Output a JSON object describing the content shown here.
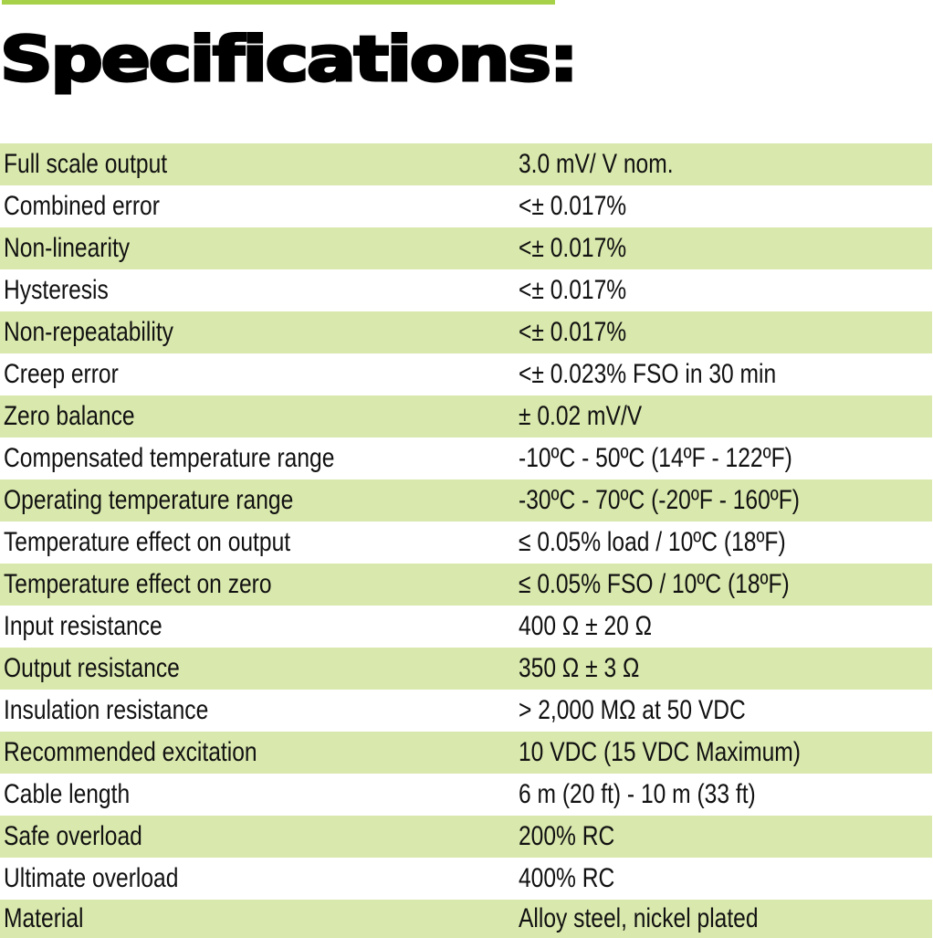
{
  "header": {
    "accent_color": "#a8d14a",
    "title": "Specifications:"
  },
  "colors": {
    "row_stripe": "#d9e8ad",
    "row_plain": "#ffffff"
  },
  "specs": [
    {
      "label": "Full scale output",
      "value": "3.0 mV/ V nom."
    },
    {
      "label": "Combined error",
      "value": "<± 0.017%"
    },
    {
      "label": "Non-linearity",
      "value": "<± 0.017%"
    },
    {
      "label": "Hysteresis",
      "value": "<± 0.017%"
    },
    {
      "label": "Non-repeatability",
      "value": "<± 0.017%"
    },
    {
      "label": "Creep error",
      "value": "<± 0.023% FSO in 30 min"
    },
    {
      "label": "Zero balance",
      "value": "± 0.02 mV/V"
    },
    {
      "label": "Compensated temperature range",
      "value": "-10ºC - 50ºC (14ºF - 122ºF)"
    },
    {
      "label": "Operating temperature range",
      "value": "-30ºC - 70ºC (-20ºF - 160ºF)"
    },
    {
      "label": "Temperature effect on output",
      "value": "≤ 0.05% load / 10ºC (18ºF)"
    },
    {
      "label": "Temperature effect on zero",
      "value": "≤ 0.05% FSO / 10ºC (18ºF)"
    },
    {
      "label": "Input resistance",
      "value": "400 Ω ± 20 Ω"
    },
    {
      "label": "Output resistance",
      "value": "350 Ω ± 3 Ω"
    },
    {
      "label": "Insulation resistance",
      "value": "> 2,000 MΩ at 50 VDC"
    },
    {
      "label": "Recommended excitation",
      "value": "10 VDC (15 VDC Maximum)"
    },
    {
      "label": "Cable length",
      "value": "6 m (20 ft) - 10 m (33 ft)"
    },
    {
      "label": "Safe overload",
      "value": "200%  RC"
    },
    {
      "label": "Ultimate overload",
      "value": "400%  RC"
    },
    {
      "label": "Material",
      "value": "Alloy steel, nickel plated"
    }
  ]
}
